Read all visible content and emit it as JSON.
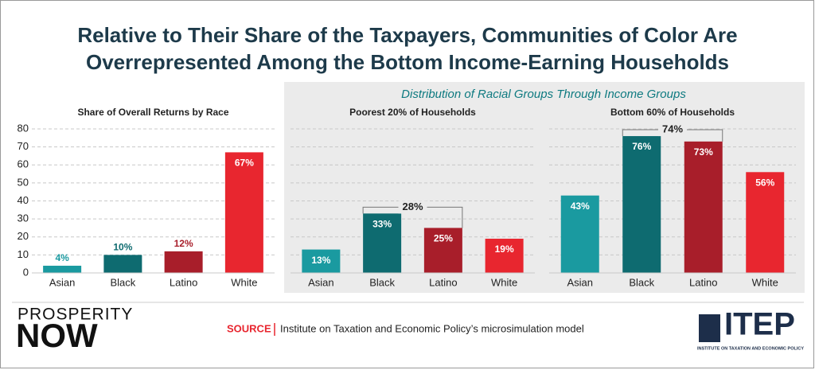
{
  "title": [
    "Relative to Their Share of the Taxpayers, Communities of Color Are",
    "Overrepresented Among the Bottom Income-Earning Households"
  ],
  "subtitle": "Distribution of Racial Groups Through Income Groups",
  "chart_data": [
    {
      "type": "bar",
      "title": "Share of Overall Returns by Race",
      "categories": [
        "Asian",
        "Black",
        "Latino",
        "White"
      ],
      "values": [
        4,
        10,
        12,
        67
      ],
      "value_labels": [
        "4%",
        "10%",
        "12%",
        "67%"
      ],
      "colors": [
        "#1a9aa0",
        "#0e6b70",
        "#a81e2a",
        "#e8262f"
      ],
      "ylim": [
        0,
        80
      ],
      "yticks": [
        0,
        10,
        20,
        30,
        40,
        50,
        60,
        70,
        80
      ],
      "grid": true
    },
    {
      "type": "bar",
      "title": "Poorest 20% of Households",
      "categories": [
        "Asian",
        "Black",
        "Latino",
        "White"
      ],
      "values": [
        13,
        33,
        25,
        19
      ],
      "value_labels": [
        "13%",
        "33%",
        "25%",
        "19%"
      ],
      "colors": [
        "#1a9aa0",
        "#0e6b70",
        "#a81e2a",
        "#e8262f"
      ],
      "ylim": [
        0,
        80
      ],
      "grid": true,
      "annotation": "28%"
    },
    {
      "type": "bar",
      "title": "Bottom 60% of Households",
      "categories": [
        "Asian",
        "Black",
        "Latino",
        "White"
      ],
      "values": [
        43,
        76,
        73,
        56
      ],
      "value_labels": [
        "43%",
        "76%",
        "73%",
        "56%"
      ],
      "colors": [
        "#1a9aa0",
        "#0e6b70",
        "#a81e2a",
        "#e8262f"
      ],
      "ylim": [
        0,
        80
      ],
      "grid": true,
      "annotation": "74%"
    }
  ],
  "source": {
    "label": "SOURCE",
    "text": "Institute on Taxation and Economic Policy’s microsimulation model"
  },
  "logos": {
    "left": [
      "PROSPERITY",
      "NOW"
    ],
    "right": {
      "name": "ITEP",
      "tagline": "INSTITUTE ON TAXATION AND ECONOMIC POLICY"
    }
  }
}
